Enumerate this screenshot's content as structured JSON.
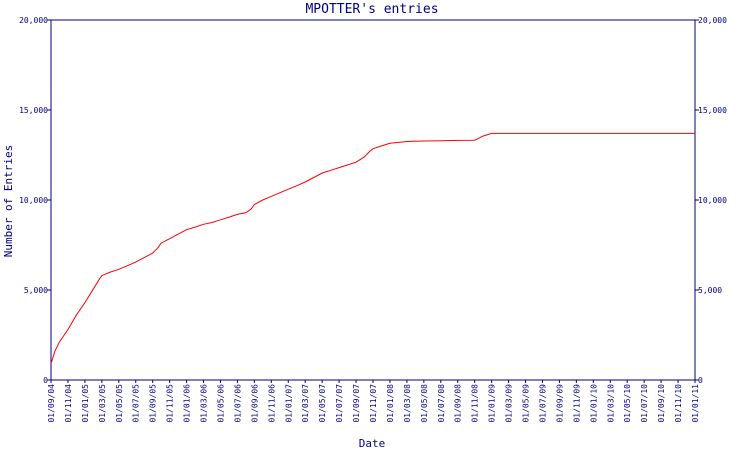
{
  "chart_data": {
    "type": "line",
    "title": "MPOTTER's entries",
    "xlabel": "Date",
    "ylabel": "Number of Entries",
    "ylim": [
      0,
      20000
    ],
    "yticks": [
      0,
      5000,
      10000,
      15000,
      20000
    ],
    "ytick_labels": [
      "0",
      "5,000",
      "10,000",
      "15,000",
      "20,000"
    ],
    "xtick_labels": [
      "01/09/04",
      "01/11/04",
      "01/01/05",
      "01/03/05",
      "01/05/05",
      "01/07/05",
      "01/09/05",
      "01/11/05",
      "01/01/06",
      "01/03/06",
      "01/05/06",
      "01/07/06",
      "01/09/06",
      "01/11/06",
      "01/01/07",
      "01/03/07",
      "01/05/07",
      "01/07/07",
      "01/09/07",
      "01/11/07",
      "01/01/08",
      "01/03/08",
      "01/05/08",
      "01/07/08",
      "01/09/08",
      "01/11/08",
      "01/01/09",
      "01/03/09",
      "01/05/09",
      "01/07/09",
      "01/09/09",
      "01/11/09",
      "01/01/10",
      "01/03/10",
      "01/05/10",
      "01/07/10",
      "01/09/10",
      "01/11/10",
      "01/01/11"
    ],
    "grid": false,
    "line_color": "#ff0000",
    "axis_color": "#000080",
    "series": [
      {
        "x": [
          "2004-09-01",
          "2004-09-15",
          "2004-10-01",
          "2004-11-01",
          "2004-12-01",
          "2005-01-01",
          "2005-02-01",
          "2005-02-20",
          "2005-03-01",
          "2005-04-01",
          "2005-05-01",
          "2005-06-01",
          "2005-07-01",
          "2005-08-01",
          "2005-09-01",
          "2005-09-20",
          "2005-10-01",
          "2005-11-01",
          "2005-12-01",
          "2006-01-01",
          "2006-02-01",
          "2006-03-01",
          "2006-04-01",
          "2006-05-01",
          "2006-06-01",
          "2006-07-01",
          "2006-08-01",
          "2006-08-20",
          "2006-09-01",
          "2006-10-01",
          "2006-11-01",
          "2006-12-01",
          "2007-01-01",
          "2007-02-01",
          "2007-03-01",
          "2007-04-01",
          "2007-05-01",
          "2007-06-01",
          "2007-07-01",
          "2007-08-01",
          "2007-09-01",
          "2007-10-01",
          "2007-10-20",
          "2007-11-01",
          "2007-12-01",
          "2008-01-01",
          "2008-02-01",
          "2008-03-01",
          "2008-05-01",
          "2008-07-01",
          "2008-09-01",
          "2008-11-01",
          "2008-12-01",
          "2009-01-01",
          "2011-01-01"
        ],
        "values": [
          900,
          1600,
          2100,
          2800,
          3600,
          4300,
          5100,
          5600,
          5800,
          6000,
          6150,
          6350,
          6550,
          6800,
          7050,
          7350,
          7600,
          7850,
          8100,
          8350,
          8500,
          8650,
          8750,
          8900,
          9050,
          9200,
          9300,
          9500,
          9750,
          10000,
          10200,
          10400,
          10600,
          10800,
          11000,
          11250,
          11500,
          11650,
          11800,
          11950,
          12100,
          12400,
          12700,
          12850,
          13000,
          13150,
          13200,
          13250,
          13280,
          13290,
          13310,
          13320,
          13550,
          13700,
          13700
        ]
      }
    ]
  }
}
